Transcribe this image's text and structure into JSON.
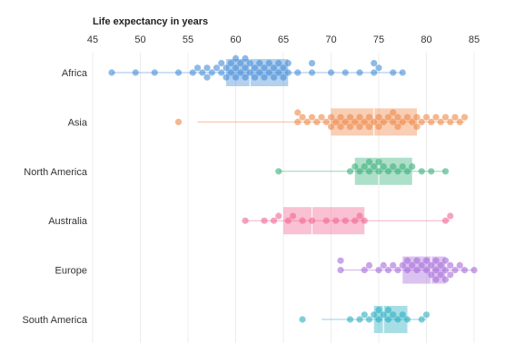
{
  "chart_data": {
    "type": "box-swarm",
    "title": "Life expectancy in years",
    "xlim": [
      45,
      85
    ],
    "xticks": [
      45,
      50,
      55,
      60,
      65,
      70,
      75,
      80,
      85
    ],
    "grid": true,
    "series": [
      {
        "name": "Africa",
        "color": "#4a90d9",
        "whisker_low": 47.0,
        "q1": 59.0,
        "median": 61.5,
        "q3": 65.5,
        "whisker_high": 77.5,
        "points": [
          47.0,
          49.5,
          51.5,
          54.0,
          55.5,
          56.0,
          56.5,
          57.0,
          57.0,
          57.5,
          58.0,
          58.5,
          58.5,
          59.0,
          59.0,
          59.5,
          59.5,
          60.0,
          60.0,
          60.0,
          60.5,
          60.5,
          61.0,
          61.0,
          61.0,
          61.5,
          61.5,
          62.0,
          62.0,
          62.5,
          62.5,
          63.0,
          63.0,
          63.5,
          63.5,
          64.0,
          64.0,
          64.5,
          64.5,
          65.0,
          65.0,
          65.5,
          65.5,
          66.5,
          68.0,
          68.0,
          70.0,
          71.5,
          73.0,
          74.5,
          74.5,
          75.0,
          76.5,
          77.5
        ]
      },
      {
        "name": "Asia",
        "color": "#ef8a4c",
        "whisker_low": 56.0,
        "q1": 70.0,
        "median": 74.5,
        "q3": 79.0,
        "whisker_high": 84.0,
        "points": [
          54.0,
          66.5,
          66.5,
          67.0,
          67.5,
          68.0,
          68.5,
          69.0,
          69.5,
          70.0,
          70.0,
          70.5,
          71.0,
          71.0,
          71.5,
          72.0,
          72.0,
          72.5,
          73.0,
          73.0,
          73.5,
          74.0,
          74.0,
          74.5,
          75.0,
          75.0,
          75.5,
          76.0,
          76.5,
          76.5,
          77.0,
          77.0,
          77.5,
          78.0,
          78.5,
          79.0,
          79.0,
          79.5,
          80.0,
          80.5,
          81.0,
          81.5,
          82.0,
          82.5,
          83.0,
          83.5,
          84.0
        ]
      },
      {
        "name": "North America",
        "color": "#3fb27f",
        "whisker_low": 64.5,
        "q1": 72.5,
        "median": 75.0,
        "q3": 78.5,
        "whisker_high": 82.0,
        "points": [
          64.5,
          72.0,
          72.5,
          73.0,
          73.5,
          74.0,
          74.0,
          74.5,
          75.0,
          75.0,
          75.5,
          76.0,
          76.5,
          77.0,
          77.5,
          78.0,
          78.5,
          79.5,
          80.5,
          82.0
        ]
      },
      {
        "name": "Australia",
        "color": "#f06b95",
        "whisker_low": 61.0,
        "q1": 65.0,
        "median": 68.0,
        "q3": 73.5,
        "whisker_high": 82.5,
        "points": [
          61.0,
          63.0,
          64.0,
          64.5,
          65.5,
          66.0,
          67.0,
          68.0,
          69.5,
          70.5,
          71.5,
          72.5,
          73.0,
          73.5,
          82.0,
          82.5
        ]
      },
      {
        "name": "Europe",
        "color": "#a970dc",
        "whisker_low": 71.0,
        "q1": 77.5,
        "median": 80.5,
        "q3": 82.0,
        "whisker_high": 85.0,
        "points": [
          71.0,
          71.0,
          73.5,
          74.0,
          75.0,
          75.5,
          76.0,
          76.5,
          77.0,
          77.5,
          78.0,
          78.0,
          78.5,
          79.0,
          79.0,
          79.5,
          80.0,
          80.0,
          80.5,
          80.5,
          81.0,
          81.0,
          81.0,
          81.5,
          81.5,
          82.0,
          82.0,
          82.0,
          82.5,
          82.5,
          83.0,
          83.5,
          84.0,
          85.0
        ]
      },
      {
        "name": "South America",
        "color": "#2eb0c4",
        "whisker_low": 69.0,
        "q1": 74.5,
        "median": 75.5,
        "q3": 78.0,
        "whisker_high": 80.0,
        "points": [
          67.0,
          72.0,
          73.0,
          73.5,
          74.0,
          74.5,
          75.0,
          75.0,
          75.5,
          76.0,
          76.0,
          76.5,
          77.0,
          77.5,
          78.0,
          79.5,
          80.0
        ]
      }
    ]
  }
}
